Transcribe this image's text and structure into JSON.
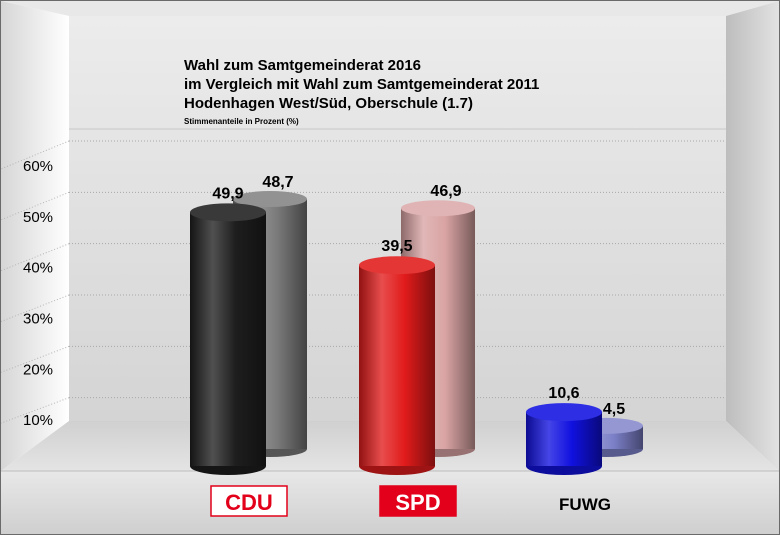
{
  "chart_data": {
    "type": "bar",
    "title_lines": [
      "Wahl zum Samtgemeinderat 2016",
      "im Vergleich mit Wahl zum Samtgemeinderat 2011",
      "Hodenhagen West/Süd, Oberschule (1.7)"
    ],
    "subtitle": "Stimmenanteile in Prozent (%)",
    "categories": [
      "CDU",
      "SPD",
      "FUWG"
    ],
    "series": [
      {
        "values": [
          49.9,
          39.5,
          10.6
        ]
      },
      {
        "values": [
          48.7,
          46.9,
          4.5
        ]
      }
    ],
    "value_labels": [
      [
        "49,9",
        "39,5",
        "10,6"
      ],
      [
        "48,7",
        "46,9",
        "4,5"
      ]
    ],
    "y_ticks": [
      10,
      20,
      30,
      40,
      50,
      60
    ],
    "y_tick_labels": [
      "10%",
      "20%",
      "30%",
      "40%",
      "50%",
      "60%"
    ],
    "ylim": [
      0,
      60
    ],
    "grid": true,
    "legend": "none",
    "colors": {
      "CDU": [
        "#1e1e1e",
        "#7a7a7a"
      ],
      "SPD": [
        "#e11b1b",
        "#d9a3a3"
      ],
      "FUWG": [
        "#1111e0",
        "#7c80c8"
      ]
    },
    "category_label_styles": {
      "CDU": {
        "text": "#e2001a",
        "background": "#ffffff",
        "border": "#e2001a"
      },
      "SPD": {
        "text": "#ffffff",
        "background": "#e2001a",
        "border": "#e2001a"
      },
      "FUWG": {
        "text": "#000000",
        "background": "none",
        "border": "none"
      }
    }
  }
}
